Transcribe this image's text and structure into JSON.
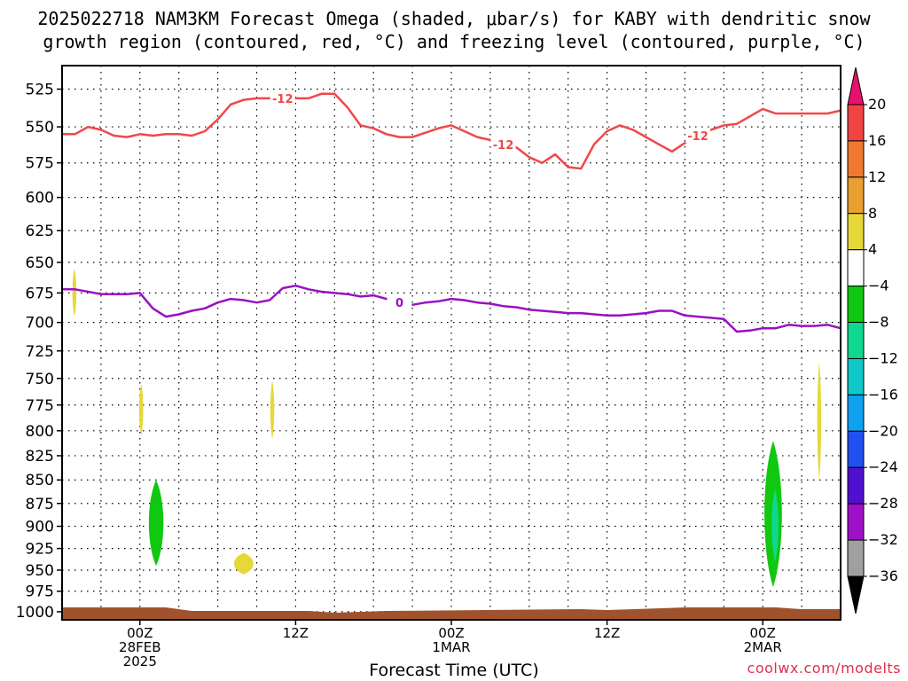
{
  "title_line1": "2025022718 NAM3KM Forecast Omega (shaded, μbar/s) for KABY with dendritic snow",
  "title_line2": "growth region (contoured, red, °C) and freezing level (contoured, purple, °C)",
  "watermark": "coolwx.com/modelts",
  "chart_data": {
    "type": "time-height",
    "title": "2025022718 NAM3KM Forecast Omega (shaded, μbar/s) for KABY with dendritic snow growth region (contoured, red, °C) and freezing level (contoured, purple, °C)",
    "xlabel": "Forecast Time (UTC)",
    "ylabel": "",
    "x_unit": "forecast hour",
    "xlim": [
      0,
      60
    ],
    "x_ticks": [
      {
        "x": 6,
        "lines": [
          "00Z",
          "28FEB",
          "2025"
        ]
      },
      {
        "x": 18,
        "lines": [
          "12Z"
        ]
      },
      {
        "x": 30,
        "lines": [
          "00Z",
          "1MAR"
        ]
      },
      {
        "x": 42,
        "lines": [
          "12Z"
        ]
      },
      {
        "x": 54,
        "lines": [
          "00Z",
          "2MAR"
        ]
      }
    ],
    "y_unit": "hPa",
    "y_ticks": [
      525,
      550,
      575,
      600,
      625,
      650,
      675,
      700,
      725,
      750,
      775,
      800,
      825,
      850,
      875,
      900,
      925,
      950,
      975,
      1000
    ],
    "ylim": [
      1010,
      510
    ],
    "grid": true,
    "colorbar": {
      "labels": [
        "20",
        "16",
        "12",
        "8",
        "4",
        "−4",
        "−8",
        "−12",
        "−16",
        "−20",
        "−24",
        "−28",
        "−32",
        "−36"
      ],
      "colors": [
        "#e8106e",
        "#f04444",
        "#f07830",
        "#e8a030",
        "#e6d838",
        "#ffffff",
        "#10c810",
        "#10d890",
        "#10c8c8",
        "#10a0f0",
        "#2050f0",
        "#5010d0",
        "#a010c8",
        "#a0a0a0",
        "#000000"
      ]
    },
    "series": [
      {
        "name": "-12",
        "color": "#f04848",
        "x": [
          0,
          1,
          2,
          3,
          4,
          5,
          6,
          7,
          8,
          9,
          10,
          11,
          12,
          13,
          14,
          15,
          16,
          17,
          18,
          19,
          20,
          21,
          22,
          23,
          24,
          25,
          26,
          27,
          28,
          29,
          30,
          31,
          32,
          33,
          34,
          35,
          36,
          37,
          38,
          39,
          40,
          41,
          42,
          43,
          44,
          45,
          46,
          47,
          48,
          49,
          50,
          51,
          52,
          53,
          54,
          55,
          56,
          57,
          58,
          59,
          60
        ],
        "y": [
          555,
          555,
          550,
          552,
          556,
          557,
          555,
          556,
          555,
          555,
          556,
          553,
          545,
          535,
          532,
          531,
          531,
          531,
          531,
          531,
          528,
          528,
          537,
          549,
          551,
          555,
          557,
          557,
          554,
          551,
          549,
          553,
          557,
          559,
          562,
          564,
          571,
          575,
          569,
          578,
          579,
          562,
          553,
          549,
          552,
          557,
          562,
          567,
          561,
          556,
          552,
          549,
          548,
          543,
          538,
          541,
          541,
          541,
          541,
          541,
          539
        ]
      },
      {
        "name": "0",
        "color": "#9a10c0",
        "x": [
          0,
          1,
          2,
          3,
          4,
          5,
          6,
          7,
          8,
          9,
          10,
          11,
          12,
          13,
          14,
          15,
          16,
          17,
          18,
          19,
          20,
          21,
          22,
          23,
          24,
          25,
          26,
          27,
          28,
          29,
          30,
          31,
          32,
          33,
          34,
          35,
          36,
          37,
          38,
          39,
          40,
          41,
          42,
          43,
          44,
          45,
          46,
          47,
          48,
          49,
          50,
          51,
          52,
          53,
          54,
          55,
          56,
          57,
          58,
          59,
          60
        ],
        "y": [
          672,
          672,
          674,
          676,
          676,
          676,
          675,
          688,
          695,
          693,
          690,
          688,
          683,
          680,
          681,
          683,
          681,
          671,
          669,
          672,
          674,
          675,
          676,
          678,
          677,
          680,
          683,
          685,
          683,
          682,
          680,
          681,
          683,
          684,
          686,
          687,
          689,
          690,
          691,
          692,
          692,
          693,
          694,
          694,
          693,
          692,
          690,
          690,
          694,
          695,
          696,
          697,
          708,
          707,
          705,
          705,
          702,
          703,
          703,
          702,
          705
        ]
      }
    ],
    "omega_regions": [
      {
        "value_range": "4 to 8",
        "x_range": [
          0.8,
          1.1
        ],
        "p_range": [
          655,
          695
        ]
      },
      {
        "value_range": "4 to 8",
        "x_range": [
          6.0,
          6.2
        ],
        "p_range": [
          755,
          805
        ]
      },
      {
        "value_range": "4 to 8",
        "x_range": [
          16.0,
          16.4
        ],
        "p_range": [
          752,
          808
        ]
      },
      {
        "value_range": "4 to 8",
        "x_range": [
          13.0,
          15.0
        ],
        "p_range": [
          930,
          955
        ]
      },
      {
        "value_range": "4 to 8",
        "x_range": [
          58.2,
          58.5
        ],
        "p_range": [
          735,
          850
        ]
      },
      {
        "value_range": "-4 to -8",
        "x_range": [
          6.5,
          8.0
        ],
        "p_range": [
          850,
          945
        ]
      },
      {
        "value_range": "-4 to -8",
        "x_range": [
          53.9,
          55.7
        ],
        "p_range": [
          810,
          970
        ]
      },
      {
        "value_range": "-8 to -12",
        "x_range": [
          54.6,
          55.3
        ],
        "p_range": [
          860,
          940
        ]
      }
    ]
  }
}
